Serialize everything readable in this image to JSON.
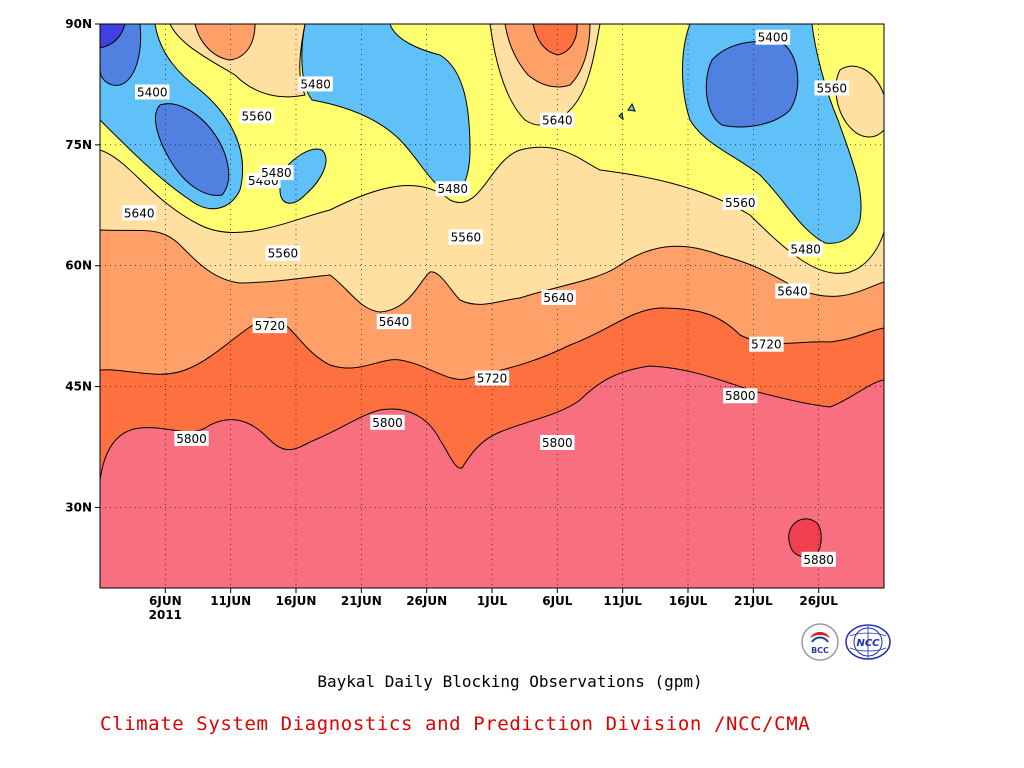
{
  "chart_data": {
    "type": "heatmap",
    "title": "Baykal Daily Blocking Observations (gpm)",
    "x_ticks": [
      {
        "label": "6JUN",
        "day": 6
      },
      {
        "label": "11JUN",
        "day": 11
      },
      {
        "label": "16JUN",
        "day": 16
      },
      {
        "label": "21JUN",
        "day": 21
      },
      {
        "label": "26JUN",
        "day": 26
      },
      {
        "label": "1JUL",
        "day": 31
      },
      {
        "label": "6JUL",
        "day": 36
      },
      {
        "label": "11JUL",
        "day": 41
      },
      {
        "label": "16JUL",
        "day": 46
      },
      {
        "label": "21JUL",
        "day": 51
      },
      {
        "label": "26JUL",
        "day": 56
      }
    ],
    "x_year_label": "2011",
    "x_range_days": [
      1,
      61
    ],
    "y_ticks": [
      {
        "label": "90N",
        "lat": 90
      },
      {
        "label": "75N",
        "lat": 75
      },
      {
        "label": "60N",
        "lat": 60
      },
      {
        "label": "45N",
        "lat": 45
      },
      {
        "label": "30N",
        "lat": 30
      }
    ],
    "y_range_lat": [
      20,
      90
    ],
    "contour_levels": [
      5400,
      5480,
      5560,
      5640,
      5720,
      5800,
      5880
    ],
    "contour_labels": [
      {
        "text": "5400",
        "day": 5.0,
        "lat": 81.5
      },
      {
        "text": "5560",
        "day": 13.0,
        "lat": 78.5
      },
      {
        "text": "5480",
        "day": 17.5,
        "lat": 82.5
      },
      {
        "text": "5480",
        "day": 13.5,
        "lat": 70.5
      },
      {
        "text": "5480",
        "day": 14.5,
        "lat": 71.5
      },
      {
        "text": "5640",
        "day": 4.0,
        "lat": 66.5
      },
      {
        "text": "5560",
        "day": 15.0,
        "lat": 61.5
      },
      {
        "text": "5720",
        "day": 14.0,
        "lat": 52.5
      },
      {
        "text": "5640",
        "day": 23.5,
        "lat": 53.0
      },
      {
        "text": "5480",
        "day": 28.0,
        "lat": 69.5
      },
      {
        "text": "5560",
        "day": 29.0,
        "lat": 63.5
      },
      {
        "text": "5640",
        "day": 36.0,
        "lat": 78.0
      },
      {
        "text": "5640",
        "day": 36.1,
        "lat": 56.0
      },
      {
        "text": "5720",
        "day": 31.0,
        "lat": 46.0
      },
      {
        "text": "5800",
        "day": 23.0,
        "lat": 40.5
      },
      {
        "text": "5800",
        "day": 8.0,
        "lat": 38.5
      },
      {
        "text": "5800",
        "day": 36.0,
        "lat": 38.0
      },
      {
        "text": "5400",
        "day": 52.5,
        "lat": 88.3
      },
      {
        "text": "5560",
        "day": 57.0,
        "lat": 82.0
      },
      {
        "text": "5560",
        "day": 50.0,
        "lat": 67.8
      },
      {
        "text": "5480",
        "day": 55.0,
        "lat": 62.0
      },
      {
        "text": "5640",
        "day": 54.0,
        "lat": 56.8
      },
      {
        "text": "5720",
        "day": 52.0,
        "lat": 50.2
      },
      {
        "text": "5800",
        "day": 50.0,
        "lat": 43.8
      },
      {
        "text": "5880",
        "day": 56.0,
        "lat": 23.5
      }
    ],
    "colors": {
      "lt5400_dark": "#4040e0",
      "5400": "#5080e0",
      "5480": "#60c0f8",
      "5560": "#ffff70",
      "5640": "#ffe0a0",
      "5720": "#ffa068",
      "5800": "#ff7040",
      "5880": "#f87080",
      "gt5880": "#f04050"
    },
    "grid": "dotted"
  },
  "footer": {
    "main_title": "Baykal Daily Blocking Observations (gpm)",
    "credit": "Climate System Diagnostics and Prediction Division /NCC/CMA"
  },
  "logos": {
    "left_text": "BCC",
    "right_text": "NCC"
  }
}
